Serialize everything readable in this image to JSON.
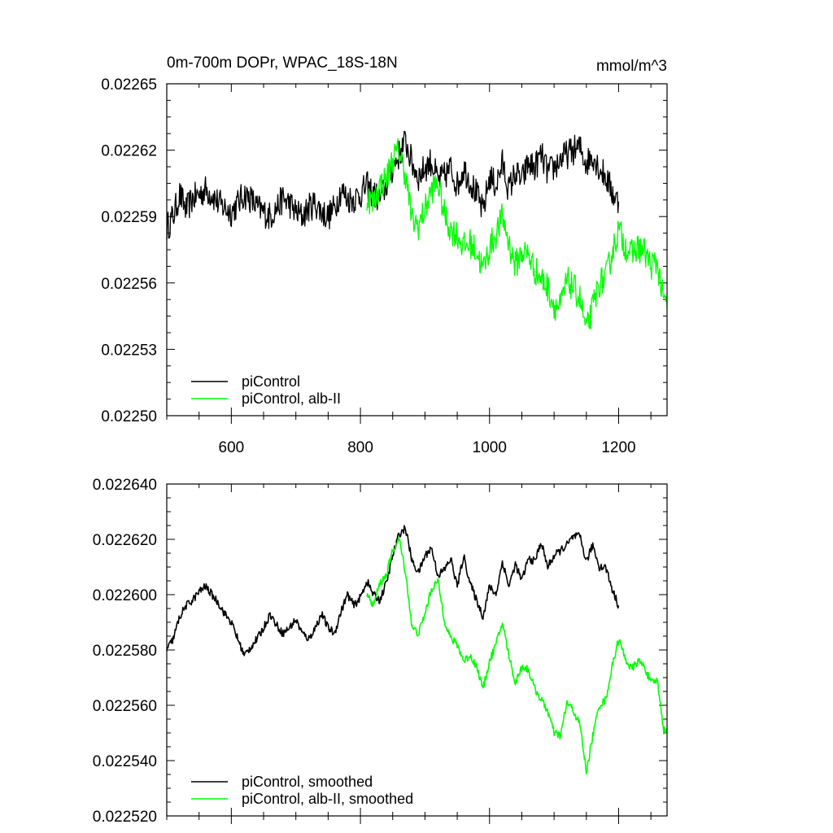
{
  "chart_data": [
    {
      "type": "line",
      "title": "0m-700m DOPr, WPAC_18S-18N",
      "units": "mmol/m^3",
      "xlim": [
        500,
        1275
      ],
      "ylim": [
        0.0225,
        0.02265
      ],
      "x_ticks": [
        600,
        800,
        1000,
        1200
      ],
      "x_tick_labels": [
        "600",
        "800",
        "1000",
        "1200"
      ],
      "y_ticks": [
        0.0225,
        0.02253,
        0.02256,
        0.02259,
        0.02262,
        0.02265
      ],
      "y_tick_labels": [
        "0.02250",
        "0.02253",
        "0.02256",
        "0.02259",
        "0.02262",
        "0.02265"
      ],
      "legend_position": "bottom-left",
      "series": [
        {
          "name": "piControl",
          "color": "#000000",
          "x_start": 500,
          "x_end": 1200,
          "sample_every": 10,
          "values": [
            0.022585,
            0.02259,
            0.0226,
            0.022593,
            0.022598,
            0.0226,
            0.022602,
            0.0226,
            0.022596,
            0.022594,
            0.022592,
            0.022596,
            0.0226,
            0.022598,
            0.022594,
            0.022592,
            0.02259,
            0.022594,
            0.022598,
            0.022596,
            0.022592,
            0.02259,
            0.022594,
            0.022596,
            0.022592,
            0.02259,
            0.022594,
            0.022602,
            0.022598,
            0.022598,
            0.0226,
            0.022604,
            0.0226,
            0.022598,
            0.022604,
            0.022612,
            0.022618,
            0.022624,
            0.022614,
            0.022608,
            0.022612,
            0.022615,
            0.022606,
            0.022608,
            0.022612,
            0.022604,
            0.022612,
            0.022606,
            0.0226,
            0.022592,
            0.022608,
            0.022604,
            0.022614,
            0.022602,
            0.02261,
            0.022606,
            0.022614,
            0.022612,
            0.022618,
            0.02261,
            0.022612,
            0.022616,
            0.022618,
            0.02262,
            0.022621,
            0.022614,
            0.022618,
            0.022612,
            0.022608,
            0.022601,
            0.022596
          ]
        },
        {
          "name": "piControl, alb-II",
          "color": "#00ff00",
          "x_start": 810,
          "x_end": 1275,
          "sample_every": 10,
          "values": [
            0.022599,
            0.022596,
            0.022604,
            0.022607,
            0.022616,
            0.02262,
            0.022609,
            0.022588,
            0.022586,
            0.022593,
            0.022602,
            0.022605,
            0.022591,
            0.022584,
            0.022582,
            0.022576,
            0.022578,
            0.022574,
            0.022566,
            0.022576,
            0.022582,
            0.02259,
            0.022578,
            0.022568,
            0.022574,
            0.022573,
            0.022566,
            0.022562,
            0.022558,
            0.02255,
            0.022549,
            0.022561,
            0.022558,
            0.022553,
            0.022538,
            0.022549,
            0.02256,
            0.022562,
            0.022574,
            0.022584,
            0.022577,
            0.022573,
            0.022576,
            0.022574,
            0.022568,
            0.022569,
            0.022551
          ]
        }
      ]
    },
    {
      "type": "line",
      "title": "",
      "units": "",
      "xlim": [
        500,
        1275
      ],
      "ylim": [
        0.02252,
        0.02264
      ],
      "x_ticks": [
        600,
        800,
        1000,
        1200
      ],
      "x_tick_labels": [],
      "y_ticks": [
        0.02252,
        0.02254,
        0.02256,
        0.02258,
        0.0226,
        0.02262,
        0.02264
      ],
      "y_tick_labels": [
        "0.022520",
        "0.022540",
        "0.022560",
        "0.022580",
        "0.022600",
        "0.022620",
        "0.022640"
      ],
      "legend_position": "bottom-left",
      "series": [
        {
          "name": "piControl, smoothed",
          "color": "#000000",
          "x_start": 500,
          "x_end": 1200,
          "sample_every": 10,
          "values": [
            0.02258,
            0.022584,
            0.022592,
            0.022596,
            0.022598,
            0.022601,
            0.022603,
            0.0226,
            0.022597,
            0.022593,
            0.02259,
            0.022584,
            0.022578,
            0.022581,
            0.022584,
            0.022588,
            0.022593,
            0.022589,
            0.022586,
            0.022588,
            0.022591,
            0.022586,
            0.022584,
            0.022588,
            0.022593,
            0.022588,
            0.022586,
            0.022594,
            0.0226,
            0.022596,
            0.022599,
            0.022605,
            0.0226,
            0.022598,
            0.022604,
            0.022614,
            0.022622,
            0.022624,
            0.022612,
            0.022608,
            0.022614,
            0.022617,
            0.022607,
            0.022609,
            0.022613,
            0.022603,
            0.022614,
            0.022604,
            0.022598,
            0.022592,
            0.022603,
            0.0226,
            0.022612,
            0.022603,
            0.022611,
            0.022605,
            0.022613,
            0.022612,
            0.022619,
            0.02261,
            0.022614,
            0.022616,
            0.022618,
            0.022621,
            0.022621,
            0.022612,
            0.022618,
            0.02261,
            0.02261,
            0.022602,
            0.022596
          ]
        },
        {
          "name": "piControl, alb-II, smoothed",
          "color": "#00ff00",
          "x_start": 810,
          "x_end": 1275,
          "sample_every": 10,
          "values": [
            0.0226,
            0.022596,
            0.022604,
            0.022607,
            0.022616,
            0.02262,
            0.022608,
            0.022588,
            0.022586,
            0.022593,
            0.022602,
            0.022605,
            0.022591,
            0.022584,
            0.022582,
            0.022576,
            0.022578,
            0.022574,
            0.022566,
            0.022576,
            0.022582,
            0.02259,
            0.022578,
            0.022568,
            0.022574,
            0.022573,
            0.022566,
            0.022562,
            0.022558,
            0.02255,
            0.022549,
            0.022561,
            0.022558,
            0.022553,
            0.022536,
            0.022549,
            0.02256,
            0.022562,
            0.022574,
            0.022584,
            0.022577,
            0.022573,
            0.022576,
            0.022574,
            0.022568,
            0.022569,
            0.022551
          ]
        }
      ]
    }
  ]
}
